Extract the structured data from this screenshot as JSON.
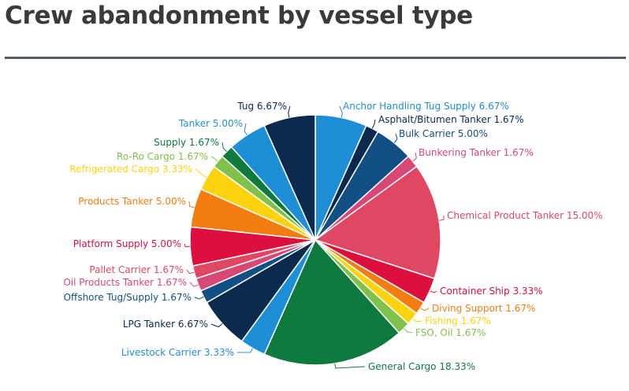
{
  "title": "Crew abandonment by vessel type",
  "chart_data": {
    "type": "pie",
    "title": "Crew abandonment by vessel type",
    "slices": [
      {
        "label": "Anchor Handling Tug Supply 6.67%",
        "value": 6.67,
        "color": "#1e8fd6"
      },
      {
        "label": "Asphalt/Bitumen Tanker 1.67%",
        "value": 1.67,
        "color": "#0b2a4e"
      },
      {
        "label": "Bulk Carrier 5.00%",
        "value": 5.0,
        "color": "#124f85"
      },
      {
        "label": "Bunkering Tanker 1.67%",
        "value": 1.67,
        "color": "#d84876"
      },
      {
        "label": "Chemical Product Tanker 15.00%",
        "value": 15.0,
        "color": "#df4763"
      },
      {
        "label": "Container Ship 3.33%",
        "value": 3.33,
        "color": "#dc0f3e"
      },
      {
        "label": "Diving Support 1.67%",
        "value": 1.67,
        "color": "#f27d10"
      },
      {
        "label": "Fishing 1.67%",
        "value": 1.67,
        "color": "#fdd20e"
      },
      {
        "label": "FSO, Oil 1.67%",
        "value": 1.67,
        "color": "#7fc14a"
      },
      {
        "label": "General Cargo 18.33%",
        "value": 18.33,
        "color": "#0e7a3e"
      },
      {
        "label": "Livestock Carrier 3.33%",
        "value": 3.33,
        "color": "#1e8fd6"
      },
      {
        "label": "LPG Tanker 6.67%",
        "value": 6.67,
        "color": "#0b2a4e"
      },
      {
        "label": "Offshore Tug/Supply 1.67%",
        "value": 1.67,
        "color": "#124f85"
      },
      {
        "label": "Oil Products Tanker 1.67%",
        "value": 1.67,
        "color": "#d84876"
      },
      {
        "label": "Pallet Carrier 1.67%",
        "value": 1.67,
        "color": "#df4763"
      },
      {
        "label": "Platform Supply 5.00%",
        "value": 5.0,
        "color": "#dc0f3e"
      },
      {
        "label": "Products Tanker 5.00%",
        "value": 5.0,
        "color": "#f27d10"
      },
      {
        "label": "Refrigerated Cargo 3.33%",
        "value": 3.33,
        "color": "#fdd20e"
      },
      {
        "label": "Ro-Ro Cargo 1.67%",
        "value": 1.67,
        "color": "#7fc14a"
      },
      {
        "label": "Supply 1.67%",
        "value": 1.67,
        "color": "#0e7a3e"
      },
      {
        "label": "Tanker 5.00%",
        "value": 5.0,
        "color": "#1e8fd6"
      },
      {
        "label": "Tug 6.67%",
        "value": 6.67,
        "color": "#0b2a4e"
      }
    ]
  }
}
